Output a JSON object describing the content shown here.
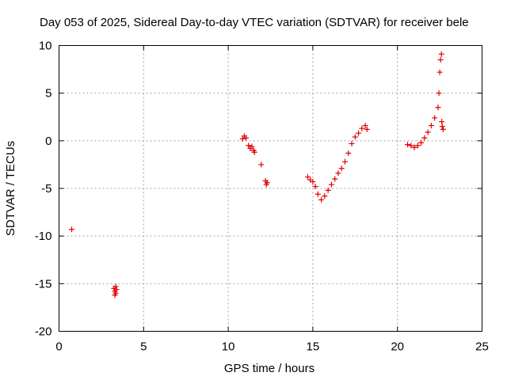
{
  "chart_data": {
    "type": "scatter",
    "title": "Day 053 of 2025, Sidereal Day-to-day VTEC variation (SDTVAR) for receiver bele",
    "xlabel": "GPS time / hours",
    "ylabel": "SDTVAR / TECUs",
    "xlim": [
      0,
      25
    ],
    "ylim": [
      -20,
      10
    ],
    "xticks": [
      0,
      5,
      10,
      15,
      20,
      25
    ],
    "yticks": [
      -20,
      -15,
      -10,
      -5,
      0,
      5,
      10
    ],
    "xtick_labels": [
      "0",
      "5",
      "10",
      "15",
      "20",
      "25"
    ],
    "ytick_labels": [
      "-20",
      "-15",
      "-10",
      "-5",
      "0",
      "5",
      "10"
    ],
    "grid": true,
    "marker": "+",
    "color": "#e00000",
    "series": [
      {
        "name": "SDTVAR",
        "x": [
          0.75,
          3.25,
          3.3,
          3.35,
          3.4,
          3.3,
          3.35,
          10.85,
          10.95,
          11.05,
          11.2,
          11.3,
          11.4,
          11.5,
          11.55,
          11.95,
          12.2,
          12.25,
          12.3,
          14.7,
          14.85,
          15.0,
          15.15,
          15.3,
          15.5,
          15.7,
          15.9,
          16.1,
          16.3,
          16.5,
          16.7,
          16.9,
          17.1,
          17.3,
          17.5,
          17.7,
          17.9,
          18.1,
          18.2,
          20.6,
          20.8,
          21.0,
          21.2,
          21.4,
          21.6,
          21.8,
          22.0,
          22.2,
          22.4,
          22.45,
          22.5,
          22.55,
          22.6,
          22.62,
          22.65,
          22.7
        ],
        "y": [
          -9.3,
          -15.5,
          -15.8,
          -16.0,
          -15.6,
          -16.2,
          -15.3,
          0.2,
          0.5,
          0.3,
          -0.5,
          -0.8,
          -0.6,
          -1.0,
          -1.2,
          -2.5,
          -4.2,
          -4.6,
          -4.4,
          -3.8,
          -4.1,
          -4.3,
          -4.8,
          -5.6,
          -6.2,
          -5.8,
          -5.2,
          -4.6,
          -4.0,
          -3.4,
          -2.9,
          -2.2,
          -1.3,
          -0.3,
          0.4,
          0.8,
          1.3,
          1.6,
          1.2,
          -0.4,
          -0.5,
          -0.7,
          -0.5,
          -0.2,
          0.3,
          0.9,
          1.6,
          2.4,
          3.5,
          5.0,
          7.2,
          8.5,
          9.1,
          2.0,
          1.5,
          1.2
        ]
      }
    ]
  }
}
